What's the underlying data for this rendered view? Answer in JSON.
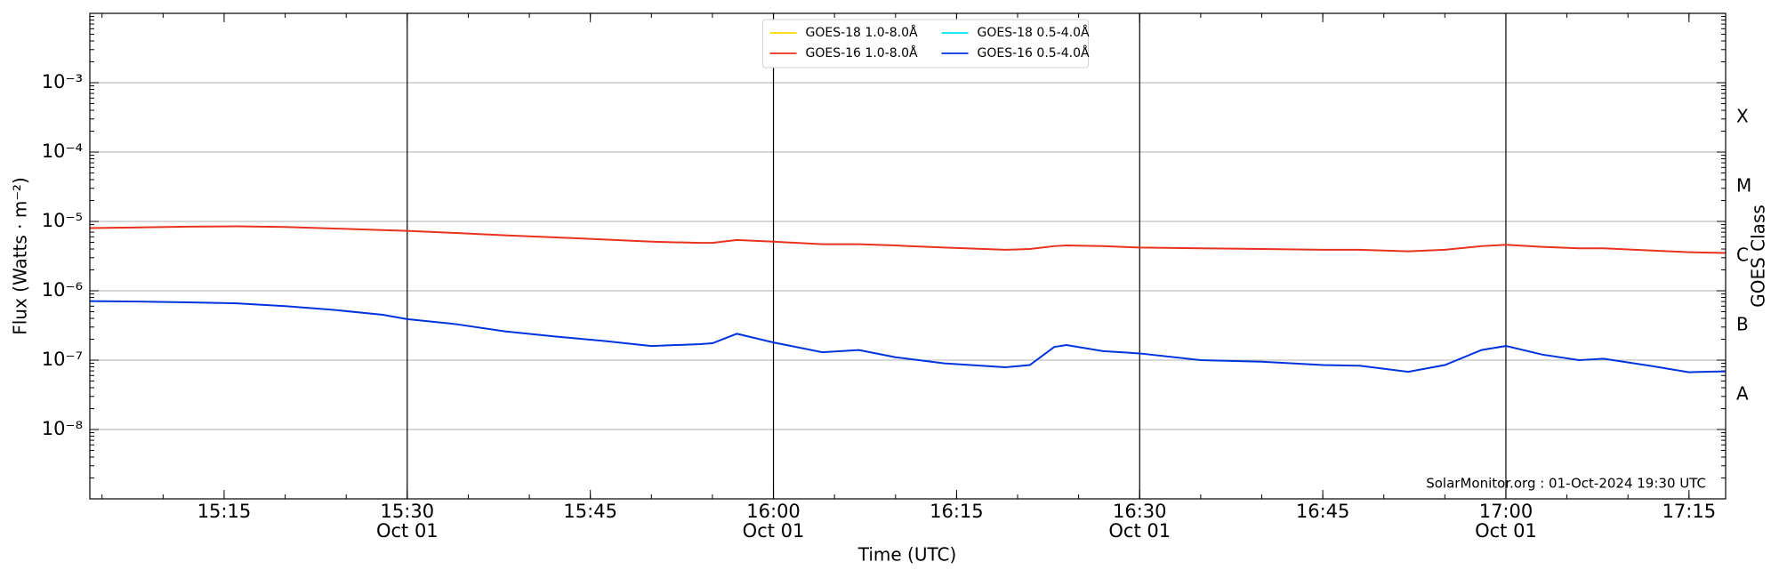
{
  "chart_data": {
    "type": "line",
    "xlabel": "Time (UTC)",
    "ylabel": "Flux (Watts · m⁻²)",
    "y2label": "GOES Class",
    "annotation": "SolarMonitor.org : 01-Oct-2024 19:30 UTC",
    "log_y": true,
    "grid": true,
    "legend": "upper center",
    "x": [
      "15:04",
      "15:08",
      "15:12",
      "15:16",
      "15:20",
      "15:24",
      "15:28",
      "15:30",
      "15:34",
      "15:38",
      "15:42",
      "15:46",
      "15:50",
      "15:54",
      "15:55",
      "15:57",
      "16:00",
      "16:04",
      "16:07",
      "16:10",
      "16:14",
      "16:19",
      "16:21",
      "16:23",
      "16:24",
      "16:27",
      "16:30",
      "16:35",
      "16:40",
      "16:45",
      "16:48",
      "16:52",
      "16:55",
      "16:58",
      "17:00",
      "17:03",
      "17:06",
      "17:08",
      "17:12",
      "17:15",
      "17:18"
    ],
    "xlim": [
      "15:04",
      "17:18"
    ],
    "xticks": [
      {
        "value": "15:15",
        "label": "15:15"
      },
      {
        "value": "15:30",
        "label": "15:30",
        "sublabel": "Oct 01"
      },
      {
        "value": "15:45",
        "label": "15:45"
      },
      {
        "value": "16:00",
        "label": "16:00",
        "sublabel": "Oct 01"
      },
      {
        "value": "16:15",
        "label": "16:15"
      },
      {
        "value": "16:30",
        "label": "16:30",
        "sublabel": "Oct 01"
      },
      {
        "value": "16:45",
        "label": "16:45"
      },
      {
        "value": "17:00",
        "label": "17:00",
        "sublabel": "Oct 01"
      },
      {
        "value": "17:15",
        "label": "17:15"
      }
    ],
    "vlines": [
      "15:30",
      "16:00",
      "16:30",
      "17:00"
    ],
    "ylim": [
      1e-09,
      0.01
    ],
    "yticks": [
      {
        "value": 1e-08,
        "label": "10⁻⁸"
      },
      {
        "value": 1e-07,
        "label": "10⁻⁷"
      },
      {
        "value": 1e-06,
        "label": "10⁻⁶"
      },
      {
        "value": 1e-05,
        "label": "10⁻⁵"
      },
      {
        "value": 0.0001,
        "label": "10⁻⁴"
      },
      {
        "value": 0.001,
        "label": "10⁻³"
      }
    ],
    "y2lim": [
      1e-09,
      0.01
    ],
    "y2ticks": [
      {
        "value": 3.16e-08,
        "label": "A"
      },
      {
        "value": 3.16e-07,
        "label": "B"
      },
      {
        "value": 3.16e-06,
        "label": "C"
      },
      {
        "value": 3.16e-05,
        "label": "M"
      },
      {
        "value": 0.000316,
        "label": "X"
      }
    ],
    "series": [
      {
        "name": "GOES-18 1.0-8.0Å",
        "color": "#ffd700",
        "values": [
          null,
          null,
          null,
          null,
          null,
          null,
          null,
          null,
          null,
          null,
          null,
          null,
          null,
          null,
          null,
          null,
          null,
          null,
          null,
          null,
          null,
          null,
          null,
          null,
          null,
          null,
          null,
          null,
          null,
          null,
          null,
          null,
          null,
          null,
          null,
          null,
          null,
          null,
          null,
          null,
          null
        ]
      },
      {
        "name": "GOES-16 1.0-8.0Å",
        "color": "#e8321e",
        "values": [
          8e-06,
          8.2e-06,
          8.4e-06,
          8.5e-06,
          8.3e-06,
          7.9e-06,
          7.5e-06,
          7.3e-06,
          6.8e-06,
          6.3e-06,
          5.9e-06,
          5.5e-06,
          5.1e-06,
          4.9e-06,
          4.9e-06,
          5.4e-06,
          5.1e-06,
          4.7e-06,
          4.7e-06,
          4.5e-06,
          4.2e-06,
          3.9e-06,
          4e-06,
          4.4e-06,
          4.5e-06,
          4.4e-06,
          4.2e-06,
          4.1e-06,
          4e-06,
          3.9e-06,
          3.9e-06,
          3.7e-06,
          3.9e-06,
          4.4e-06,
          4.6e-06,
          4.3e-06,
          4.1e-06,
          4.1e-06,
          3.8e-06,
          3.6e-06,
          3.5e-06
        ]
      },
      {
        "name": "GOES-18 0.5-4.0Å",
        "color": "#00e5ee",
        "values": [
          null,
          null,
          null,
          null,
          null,
          null,
          null,
          null,
          null,
          null,
          null,
          null,
          null,
          null,
          null,
          null,
          null,
          null,
          null,
          null,
          null,
          null,
          null,
          null,
          null,
          null,
          null,
          null,
          null,
          null,
          null,
          null,
          null,
          null,
          null,
          null,
          null,
          null,
          null,
          null,
          null
        ]
      },
      {
        "name": "GOES-16 0.5-4.0Å",
        "color": "#0033dd",
        "values": [
          7.1e-07,
          7e-07,
          6.8e-07,
          6.6e-07,
          6e-07,
          5.3e-07,
          4.5e-07,
          3.9e-07,
          3.3e-07,
          2.6e-07,
          2.2e-07,
          1.9e-07,
          1.6e-07,
          1.7e-07,
          1.75e-07,
          2.4e-07,
          1.8e-07,
          1.3e-07,
          1.4e-07,
          1.1e-07,
          9e-08,
          7.9e-08,
          8.5e-08,
          1.55e-07,
          1.65e-07,
          1.35e-07,
          1.25e-07,
          1e-07,
          9.5e-08,
          8.5e-08,
          8.3e-08,
          6.8e-08,
          8.5e-08,
          1.4e-07,
          1.6e-07,
          1.2e-07,
          1e-07,
          1.05e-07,
          8.2e-08,
          6.7e-08,
          6.9e-08
        ]
      }
    ]
  }
}
